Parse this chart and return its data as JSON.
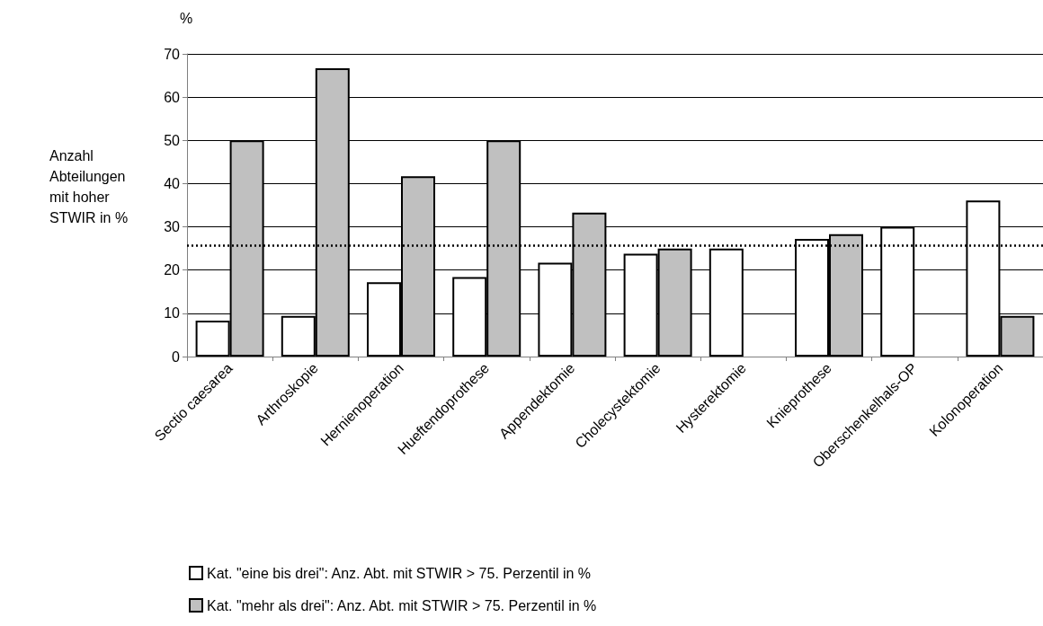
{
  "chart_data": {
    "type": "bar",
    "ylabel": "Anzahl Abteilungen mit hoher STWIR in %",
    "annotations": [
      "%"
    ],
    "categories": [
      "Sectio caesarea",
      "Arthroskopie",
      "Hernienoperation",
      "Hueftendoprothese",
      "Appendektomie",
      "Cholecystektomie",
      "Hysterektomie",
      "Knieprothese",
      "Oberschenkelhals-OP",
      "Kolonoperation"
    ],
    "series": [
      {
        "name": "Kat. \"eine bis drei\": Anz. Abt. mit STWIR > 75. Perzentil in %",
        "color": "#ffffff",
        "values": [
          8.3,
          9.4,
          17.2,
          18.4,
          21.7,
          23.8,
          25.0,
          27.2,
          30.0,
          36.1
        ]
      },
      {
        "name": "Kat. \"mehr als drei\": Anz. Abt. mit STWIR > 75. Perzentil in %",
        "color": "#c0c0c0",
        "values": [
          50.0,
          66.7,
          41.7,
          50.0,
          33.3,
          25.0,
          null,
          28.3,
          null,
          9.4
        ]
      }
    ],
    "ylim": [
      0,
      70
    ],
    "yticks": [
      0,
      10,
      20,
      30,
      40,
      50,
      60,
      70
    ],
    "grid": "y",
    "legend": "bottom",
    "ref_lines": [
      {
        "axis": "y",
        "value": 25.7,
        "line_style": "dotted",
        "color": "#000000"
      }
    ]
  }
}
